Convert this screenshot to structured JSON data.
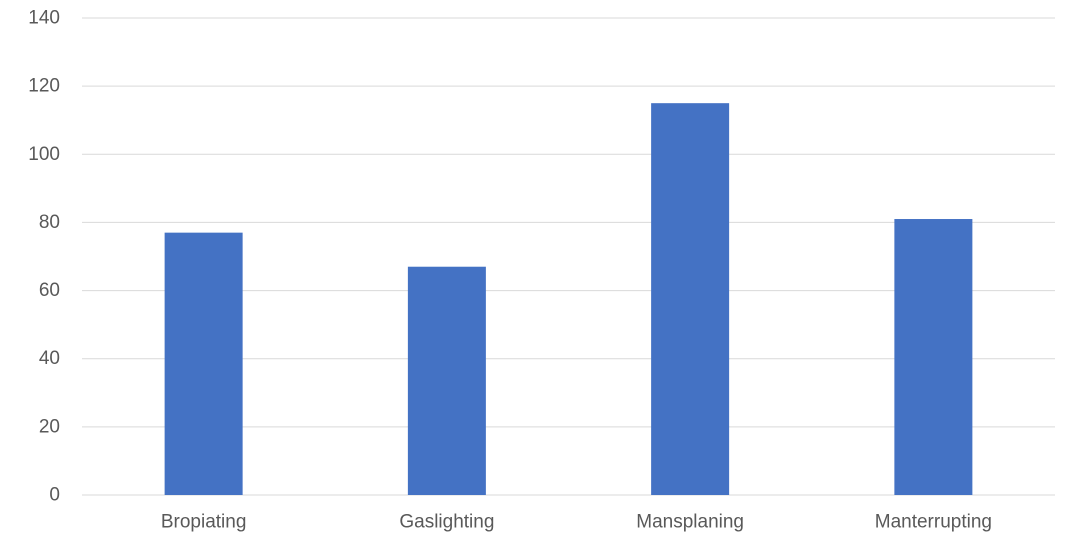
{
  "chart_data": {
    "type": "bar",
    "categories": [
      "Bropiating",
      "Gaslighting",
      "Mansplaning",
      "Manterrupting"
    ],
    "values": [
      77,
      67,
      115,
      81
    ],
    "ylim": [
      0,
      140
    ],
    "yticks": [
      0,
      20,
      40,
      60,
      80,
      100,
      120,
      140
    ],
    "grid": true,
    "legend": "none",
    "colors": {
      "bar": "#4472C4",
      "grid": "#D9D9D9",
      "text": "#595959"
    }
  }
}
